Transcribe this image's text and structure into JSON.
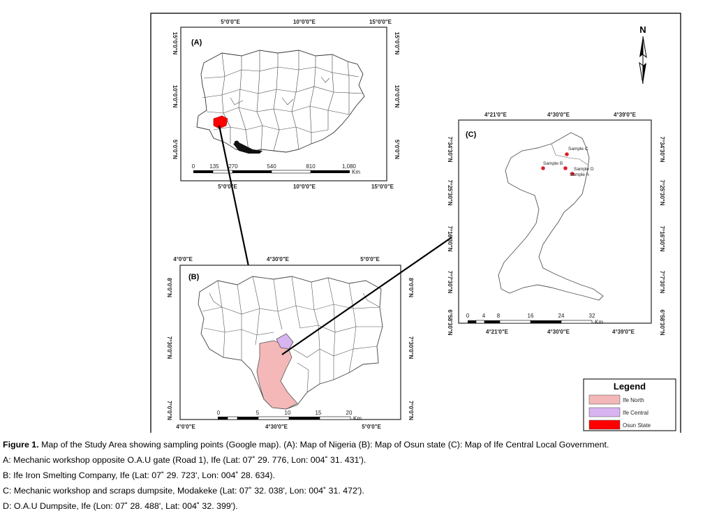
{
  "map": {
    "north_label": "N",
    "panel_a": {
      "label": "(A)",
      "top_ticks": [
        "5°0'0\"E",
        "10°0'0\"E",
        "15°0'0\"E"
      ],
      "bottom_ticks": [
        "5°0'0\"E",
        "10°0'0\"E",
        "15°0'0\"E"
      ],
      "left_ticks": [
        "15°0'0\"N",
        "10°0'0\"N",
        "5°0'0\"N"
      ],
      "right_ticks": [
        "15°0'0\"N",
        "10°0'0\"N",
        "5°0'0\"N"
      ],
      "scale_numbers": [
        "0",
        "135",
        "270",
        "540",
        "810",
        "1,080"
      ],
      "scale_unit": "Km"
    },
    "panel_b": {
      "label": "(B)",
      "top_ticks": [
        "4°0'0\"E",
        "4°30'0\"E",
        "5°0'0\"E"
      ],
      "bottom_ticks": [
        "4°0'0\"E",
        "4°30'0\"E",
        "5°0'0\"E"
      ],
      "left_ticks": [
        "8°0'0\"N",
        "7°30'0\"N",
        "7°0'0\"N"
      ],
      "right_ticks": [
        "8°0'0\"N",
        "7°30'0\"N",
        "7°0'0\"N"
      ],
      "scale_numbers": [
        "0",
        "5",
        "10",
        "15",
        "20"
      ],
      "scale_unit": "Km"
    },
    "panel_c": {
      "label": "(C)",
      "top_ticks": [
        "4°21'0\"E",
        "4°30'0\"E",
        "4°39'0\"E"
      ],
      "bottom_ticks": [
        "4°21'0\"E",
        "4°30'0\"E",
        "4°39'0\"E"
      ],
      "left_ticks": [
        "7°34'30\"N",
        "7°25'30\"N",
        "7°16'30\"N",
        "7°7'30\"N",
        "6°58'30\"N"
      ],
      "right_ticks": [
        "7°34'30\"N",
        "7°25'30\"N",
        "7°16'30\"N",
        "7°7'30\"N",
        "6°58'30\"N"
      ],
      "scale_numbers": [
        "0",
        "4",
        "8",
        "16",
        "24",
        "32"
      ],
      "scale_unit": "Km",
      "samples": [
        {
          "label": "Sample C",
          "color": "#e0202a"
        },
        {
          "label": "Sample B",
          "color": "#e0202a"
        },
        {
          "label": "Sample D",
          "color": "#e0202a"
        },
        {
          "label": "Sample A",
          "color": "#e0202a"
        }
      ]
    },
    "legend": {
      "title": "Legend",
      "items": [
        {
          "label": "Ife North",
          "color": "#f4b8b8"
        },
        {
          "label": "Ife Central",
          "color": "#d8b4f0"
        },
        {
          "label": "Osun State",
          "color": "#ff0000"
        }
      ]
    }
  },
  "caption": {
    "figure_number": "Figure 1.",
    "figure_text": " Map of the Study Area showing sampling points (Google map). (A): Map of Nigeria (B): Map of Osun state (C):  Map of Ife Central Local Government.",
    "lines": [
      "A: Mechanic workshop opposite O.A.U gate (Road 1), Ife (Lat: 07˚ 29. 776, Lon: 004˚ 31. 431').",
      "B: Ife Iron Smelting Company, Ife (Lat: 07˚ 29. 723', Lon: 004˚ 28. 634).",
      "C: Mechanic workshop and scraps dumpsite, Modakeke (Lat: 07˚ 32. 038', Lon: 004˚ 31. 472').",
      "D: O.A.U Dumpsite, Ife (Lon: 07˚ 28. 488', Lat: 004˚ 32. 399')."
    ]
  }
}
